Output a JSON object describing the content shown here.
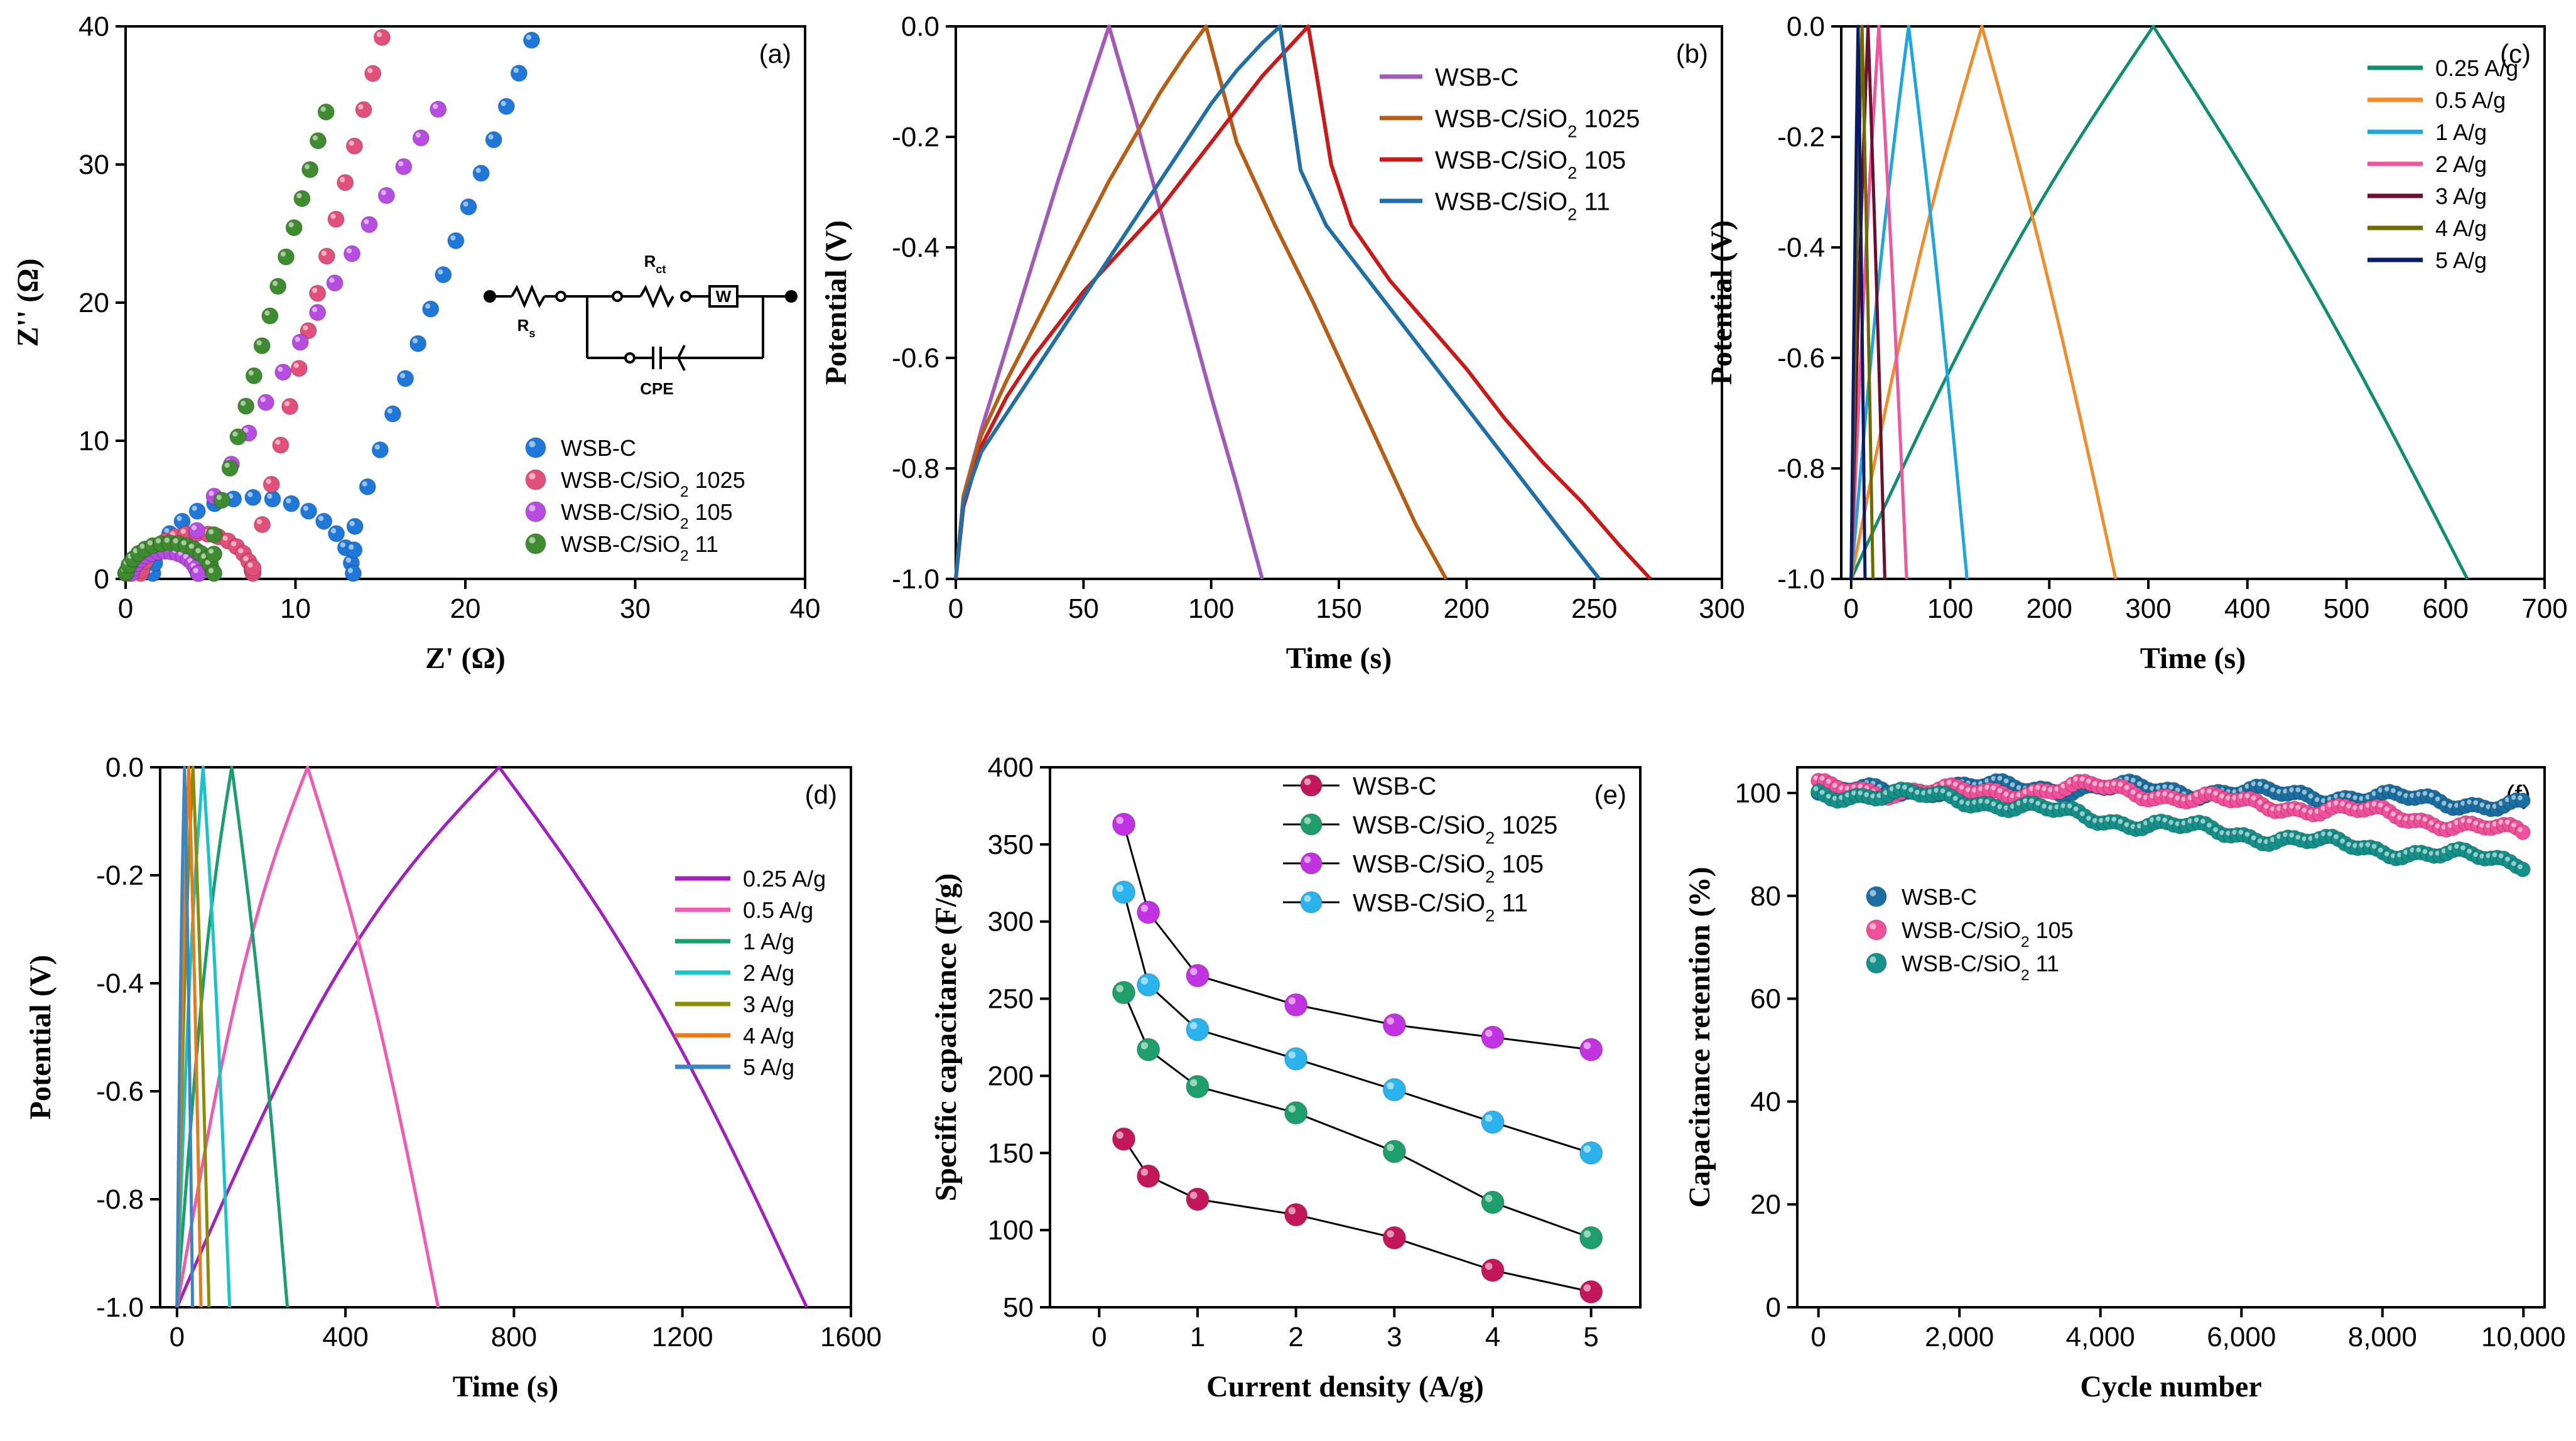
{
  "chart_data": [
    {
      "id": "a",
      "panel_label": "(a)",
      "type": "scatter",
      "xlabel": "Z' (Ω)",
      "ylabel": "Z'' (Ω)",
      "xlim": [
        0,
        40
      ],
      "ylim": [
        0,
        40
      ],
      "xticks": [
        0,
        10,
        20,
        30,
        40
      ],
      "yticks": [
        0,
        10,
        20,
        30,
        40
      ],
      "circuit_labels": [
        "Rs",
        "Rct",
        "W",
        "CPE"
      ],
      "legend": [
        "WSB-C",
        "WSB-C/SiO2 1025",
        "WSB-C/SiO2 105",
        "WSB-C/SiO2 11"
      ],
      "series": [
        {
          "name": "WSB-C",
          "color": "#1f78d8",
          "kind": "nyquist",
          "x0": 1.6,
          "r": 5.9,
          "x1": 13.5,
          "y1": 3.8,
          "tailEnd": [
            23.9,
            39
          ]
        },
        {
          "name": "WSB-C/SiO2 1025",
          "color": "#e0507a",
          "kind": "nyquist",
          "x0": 0.9,
          "r": 3.3,
          "x1": 7.5,
          "y1": 0.8,
          "tailEnd": [
            15.1,
            39.2
          ]
        },
        {
          "name": "WSB-C/SiO2 105",
          "color": "#b64ce0",
          "kind": "nyquist",
          "x0": 0.3,
          "r": 2.0,
          "x1": 4.2,
          "y1": 3.5,
          "tailEnd": [
            18.4,
            34
          ]
        },
        {
          "name": "WSB-C/SiO2 11",
          "color": "#3f8b2f",
          "kind": "nyquist",
          "x0": 0.0,
          "r": 2.6,
          "x1": 5.2,
          "y1": 3.2,
          "tailEnd": [
            11.8,
            33.8
          ]
        }
      ]
    },
    {
      "id": "b",
      "panel_label": "(b)",
      "type": "line",
      "xlabel": "Time (s)",
      "ylabel": "Potential (V)",
      "xlim": [
        0,
        300
      ],
      "ylim": [
        -1.0,
        0.0
      ],
      "xticks": [
        0,
        50,
        100,
        150,
        200,
        250,
        300
      ],
      "yticks": [
        0.0,
        -0.2,
        -0.4,
        -0.6,
        -0.8,
        -1.0
      ],
      "legend": [
        "WSB-C",
        "WSB-C/SiO2 1025",
        "WSB-C/SiO2 105",
        "WSB-C/SiO2 11"
      ],
      "series": [
        {
          "name": "WSB-C",
          "color": "#a25ab8",
          "x": [
            0,
            3,
            10,
            20,
            30,
            40,
            50,
            60,
            70,
            80,
            90,
            100,
            110,
            120
          ],
          "y": [
            -1.0,
            -0.85,
            -0.73,
            -0.58,
            -0.43,
            -0.28,
            -0.14,
            0.0,
            -0.16,
            -0.33,
            -0.5,
            -0.67,
            -0.83,
            -1.0
          ]
        },
        {
          "name": "WSB-C/SiO2 1025",
          "color": "#b85e14",
          "x": [
            0,
            3,
            10,
            20,
            30,
            40,
            50,
            60,
            70,
            80,
            90,
            98,
            110,
            125,
            140,
            150,
            160,
            170,
            180,
            192
          ],
          "y": [
            -1.0,
            -0.85,
            -0.74,
            -0.64,
            -0.55,
            -0.46,
            -0.37,
            -0.28,
            -0.2,
            -0.12,
            -0.05,
            0.0,
            -0.21,
            -0.36,
            -0.5,
            -0.6,
            -0.7,
            -0.8,
            -0.9,
            -1.0
          ]
        },
        {
          "name": "WSB-C/SiO2 105",
          "color": "#cc1818",
          "x": [
            0,
            3,
            10,
            20,
            30,
            40,
            50,
            60,
            70,
            80,
            90,
            100,
            110,
            120,
            130,
            138,
            141,
            147,
            155,
            170,
            185,
            200,
            215,
            230,
            245,
            260,
            272
          ],
          "y": [
            -1.0,
            -0.87,
            -0.76,
            -0.67,
            -0.6,
            -0.54,
            -0.48,
            -0.43,
            -0.38,
            -0.33,
            -0.27,
            -0.21,
            -0.15,
            -0.09,
            -0.04,
            0.0,
            -0.08,
            -0.25,
            -0.36,
            -0.46,
            -0.54,
            -0.62,
            -0.71,
            -0.79,
            -0.86,
            -0.94,
            -1.0
          ]
        },
        {
          "name": "WSB-C/SiO2 11",
          "color": "#1f6fa8",
          "x": [
            0,
            3,
            10,
            20,
            30,
            40,
            50,
            60,
            70,
            80,
            90,
            100,
            110,
            120,
            127,
            130,
            135,
            145,
            160,
            175,
            190,
            205,
            220,
            235,
            252
          ],
          "y": [
            -1.0,
            -0.86,
            -0.77,
            -0.7,
            -0.63,
            -0.56,
            -0.49,
            -0.42,
            -0.35,
            -0.28,
            -0.21,
            -0.14,
            -0.08,
            -0.03,
            0.0,
            -0.1,
            -0.26,
            -0.36,
            -0.45,
            -0.54,
            -0.63,
            -0.72,
            -0.81,
            -0.9,
            -1.0
          ]
        }
      ]
    },
    {
      "id": "c",
      "panel_label": "(c)",
      "type": "line",
      "xlabel": "Time (s)",
      "ylabel": "Potential (V)",
      "xlim": [
        -10,
        700
      ],
      "ylim": [
        -1.0,
        0.0
      ],
      "xticks": [
        0,
        100,
        200,
        300,
        400,
        500,
        600,
        700
      ],
      "yticks": [
        0.0,
        -0.2,
        -0.4,
        -0.6,
        -0.8,
        -1.0
      ],
      "legend": [
        "0.25 A/g",
        "0.5 A/g",
        "1 A/g",
        "2 A/g",
        "3 A/g",
        "4 A/g",
        "5 A/g"
      ],
      "series": [
        {
          "name": "0.25 A/g",
          "color": "#0f8f70",
          "peak": 305,
          "end": 622
        },
        {
          "name": "0.5 A/g",
          "color": "#f28c28",
          "peak": 132,
          "end": 267
        },
        {
          "name": "1 A/g",
          "color": "#1aa6e0",
          "peak": 58,
          "end": 117
        },
        {
          "name": "2 A/g",
          "color": "#f0559e",
          "peak": 28,
          "end": 56
        },
        {
          "name": "3 A/g",
          "color": "#6b0f2c",
          "peak": 17,
          "end": 34
        },
        {
          "name": "4 A/g",
          "color": "#6b6b00",
          "peak": 11,
          "end": 22
        },
        {
          "name": "5 A/g",
          "color": "#0a1a66",
          "peak": 7,
          "end": 14
        }
      ]
    },
    {
      "id": "d",
      "panel_label": "(d)",
      "type": "line",
      "xlabel": "Time (s)",
      "ylabel": "Potential (V)",
      "xlim": [
        -40,
        1600
      ],
      "ylim": [
        -1.0,
        0.0
      ],
      "xticks": [
        0,
        400,
        800,
        1200,
        1600
      ],
      "yticks": [
        0.0,
        -0.2,
        -0.4,
        -0.6,
        -0.8,
        -1.0
      ],
      "legend": [
        "0.25 A/g",
        "0.5 A/g",
        "1 A/g",
        "2 A/g",
        "3 A/g",
        "4 A/g",
        "5 A/g"
      ],
      "series": [
        {
          "name": "0.25 A/g",
          "color": "#a020c0",
          "peak": 765,
          "end": 1495
        },
        {
          "name": "0.5 A/g",
          "color": "#f05ab4",
          "peak": 310,
          "end": 620
        },
        {
          "name": "1 A/g",
          "color": "#1a9e6e",
          "peak": 130,
          "end": 262
        },
        {
          "name": "2 A/g",
          "color": "#18c4c8",
          "peak": 62,
          "end": 125
        },
        {
          "name": "3 A/g",
          "color": "#8c8c0a",
          "peak": 38,
          "end": 76
        },
        {
          "name": "4 A/g",
          "color": "#e87a1a",
          "peak": 28,
          "end": 57
        },
        {
          "name": "5 A/g",
          "color": "#3a86c4",
          "peak": 18,
          "end": 37
        }
      ]
    },
    {
      "id": "e",
      "panel_label": "(e)",
      "type": "line",
      "xlabel": "Current density (A/g)",
      "ylabel": "Specific capacitance (F/g)",
      "xlim": [
        -0.5,
        5.5
      ],
      "ylim": [
        50,
        400
      ],
      "xticks": [
        0,
        1,
        2,
        3,
        4,
        5
      ],
      "yticks": [
        50,
        100,
        150,
        200,
        250,
        300,
        350,
        400
      ],
      "legend": [
        "WSB-C",
        "WSB-C/SiO2 1025",
        "WSB-C/SiO2 105",
        "WSB-C/SiO2 11"
      ],
      "x": [
        0.25,
        0.5,
        1,
        2,
        3,
        4,
        5
      ],
      "series": [
        {
          "name": "WSB-C",
          "color": "#c2185b",
          "values": [
            159,
            135,
            120,
            110,
            95,
            74,
            60
          ]
        },
        {
          "name": "WSB-C/SiO2 1025",
          "color": "#1e9e6a",
          "values": [
            254,
            217,
            193,
            176,
            151,
            118,
            95
          ]
        },
        {
          "name": "WSB-C/SiO2 105",
          "color": "#c132e0",
          "values": [
            363,
            306,
            265,
            246,
            233,
            225,
            217
          ]
        },
        {
          "name": "WSB-C/SiO2 11",
          "color": "#2bb3ee",
          "values": [
            319,
            259,
            230,
            211,
            191,
            170,
            150
          ]
        }
      ]
    },
    {
      "id": "f",
      "panel_label": "(f)",
      "type": "scatter",
      "xlabel": "Cycle number",
      "ylabel": "Capacitance retention (%)",
      "xlim": [
        -300,
        10300
      ],
      "ylim": [
        0,
        105
      ],
      "xticks": [
        0,
        2000,
        4000,
        6000,
        8000,
        10000
      ],
      "xtick_labels": [
        "0",
        "2,000",
        "4,000",
        "6,000",
        "8,000",
        "10,000"
      ],
      "yticks": [
        0,
        20,
        40,
        60,
        80,
        100
      ],
      "legend": [
        "WSB-C",
        "WSB-C/SiO2 105",
        "WSB-C/SiO2 11"
      ],
      "series": [
        {
          "name": "WSB-C",
          "color": "#1a6fa0",
          "x": [
            0,
            2000,
            4000,
            6000,
            8000,
            10000
          ],
          "values": [
            100,
            101,
            101,
            100,
            99,
            97.5
          ]
        },
        {
          "name": "WSB-C/SiO2 105",
          "color": "#f0509a",
          "x": [
            0,
            2000,
            4000,
            6000,
            8000,
            10000
          ],
          "values": [
            101,
            100,
            101,
            98,
            96,
            92
          ]
        },
        {
          "name": "WSB-C/SiO2 11",
          "color": "#16908a",
          "x": [
            0,
            2000,
            4000,
            6000,
            8000,
            10000
          ],
          "values": [
            100,
            99,
            95,
            92,
            89,
            86.5
          ]
        }
      ]
    }
  ]
}
